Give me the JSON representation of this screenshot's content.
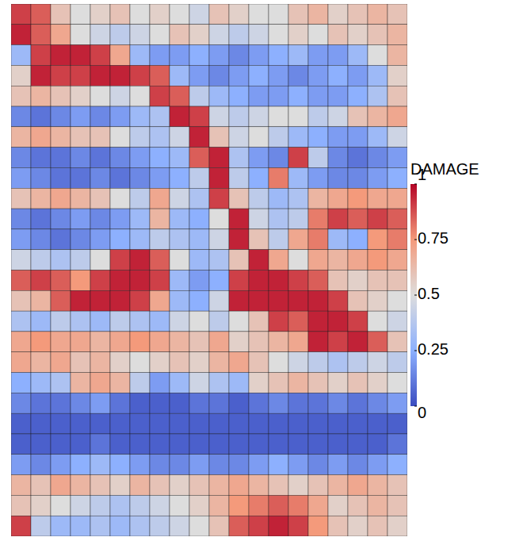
{
  "chart_data": {
    "type": "heatmap",
    "tick_labels": false,
    "colorbar_title": "DAMAGE",
    "colorbar_range": [
      0,
      1
    ],
    "colorbar_ticks": [
      0,
      0.25,
      0.5,
      0.75,
      1
    ],
    "cells": [
      [
        0.9,
        0.85,
        0.6,
        0.5,
        0.55,
        0.6,
        0.5,
        0.55,
        0.5,
        0.45,
        0.6,
        0.55,
        0.5,
        0.5,
        0.6,
        0.65,
        0.55,
        0.6,
        0.65,
        0.6
      ],
      [
        0.95,
        0.85,
        0.7,
        0.5,
        0.45,
        0.4,
        0.45,
        0.5,
        0.6,
        0.55,
        0.45,
        0.4,
        0.45,
        0.5,
        0.55,
        0.5,
        0.6,
        0.55,
        0.6,
        0.65
      ],
      [
        0.3,
        0.9,
        0.95,
        0.95,
        0.9,
        0.7,
        0.3,
        0.2,
        0.2,
        0.25,
        0.2,
        0.15,
        0.2,
        0.25,
        0.3,
        0.2,
        0.2,
        0.3,
        0.5,
        0.65
      ],
      [
        0.55,
        0.95,
        0.9,
        0.9,
        0.95,
        0.95,
        0.9,
        0.85,
        0.3,
        0.2,
        0.15,
        0.2,
        0.25,
        0.2,
        0.15,
        0.2,
        0.25,
        0.2,
        0.3,
        0.55
      ],
      [
        0.6,
        0.65,
        0.6,
        0.55,
        0.5,
        0.45,
        0.5,
        0.9,
        0.85,
        0.4,
        0.3,
        0.25,
        0.2,
        0.2,
        0.25,
        0.2,
        0.2,
        0.25,
        0.35,
        0.6
      ],
      [
        0.15,
        0.1,
        0.15,
        0.2,
        0.15,
        0.2,
        0.3,
        0.35,
        0.95,
        0.9,
        0.45,
        0.4,
        0.45,
        0.5,
        0.5,
        0.4,
        0.45,
        0.6,
        0.65,
        0.7
      ],
      [
        0.65,
        0.7,
        0.65,
        0.6,
        0.6,
        0.5,
        0.4,
        0.35,
        0.45,
        0.95,
        0.6,
        0.45,
        0.5,
        0.4,
        0.3,
        0.25,
        0.2,
        0.2,
        0.3,
        0.45
      ],
      [
        0.15,
        0.1,
        0.1,
        0.15,
        0.1,
        0.15,
        0.2,
        0.25,
        0.3,
        0.85,
        0.95,
        0.35,
        0.2,
        0.15,
        0.9,
        0.4,
        0.15,
        0.1,
        0.15,
        0.2
      ],
      [
        0.2,
        0.15,
        0.1,
        0.1,
        0.15,
        0.1,
        0.15,
        0.2,
        0.25,
        0.4,
        0.95,
        0.4,
        0.25,
        0.8,
        0.3,
        0.2,
        0.15,
        0.15,
        0.2,
        0.25
      ],
      [
        0.6,
        0.65,
        0.7,
        0.65,
        0.6,
        0.5,
        0.4,
        0.7,
        0.45,
        0.35,
        0.9,
        0.6,
        0.4,
        0.3,
        0.35,
        0.65,
        0.7,
        0.75,
        0.7,
        0.7
      ],
      [
        0.15,
        0.1,
        0.15,
        0.2,
        0.15,
        0.2,
        0.3,
        0.65,
        0.3,
        0.25,
        0.5,
        0.95,
        0.45,
        0.35,
        0.4,
        0.8,
        0.9,
        0.85,
        0.9,
        0.85
      ],
      [
        0.2,
        0.15,
        0.1,
        0.15,
        0.2,
        0.25,
        0.3,
        0.4,
        0.35,
        0.3,
        0.45,
        0.95,
        0.6,
        0.4,
        0.7,
        0.8,
        0.3,
        0.25,
        0.75,
        0.8
      ],
      [
        0.45,
        0.4,
        0.35,
        0.4,
        0.5,
        0.9,
        0.95,
        0.85,
        0.5,
        0.3,
        0.35,
        0.6,
        0.95,
        0.7,
        0.5,
        0.7,
        0.65,
        0.7,
        0.75,
        0.7
      ],
      [
        0.85,
        0.9,
        0.85,
        0.75,
        0.9,
        0.95,
        0.95,
        0.9,
        0.3,
        0.2,
        0.25,
        0.9,
        0.95,
        0.95,
        0.9,
        0.85,
        0.6,
        0.55,
        0.6,
        0.6
      ],
      [
        0.6,
        0.65,
        0.85,
        0.95,
        0.95,
        0.95,
        0.9,
        0.7,
        0.3,
        0.25,
        0.45,
        0.95,
        0.95,
        0.95,
        0.95,
        0.95,
        0.9,
        0.6,
        0.55,
        0.5
      ],
      [
        0.35,
        0.3,
        0.4,
        0.35,
        0.3,
        0.4,
        0.35,
        0.3,
        0.45,
        0.5,
        0.4,
        0.5,
        0.6,
        0.9,
        0.85,
        0.95,
        0.95,
        0.9,
        0.5,
        0.45
      ],
      [
        0.7,
        0.75,
        0.7,
        0.7,
        0.65,
        0.7,
        0.75,
        0.7,
        0.65,
        0.6,
        0.7,
        0.55,
        0.6,
        0.65,
        0.7,
        0.95,
        0.9,
        0.95,
        0.85,
        0.6
      ],
      [
        0.7,
        0.65,
        0.7,
        0.6,
        0.65,
        0.55,
        0.5,
        0.55,
        0.6,
        0.55,
        0.65,
        0.7,
        0.6,
        0.5,
        0.45,
        0.4,
        0.35,
        0.4,
        0.45,
        0.4
      ],
      [
        0.25,
        0.3,
        0.35,
        0.65,
        0.7,
        0.65,
        0.4,
        0.2,
        0.3,
        0.45,
        0.35,
        0.3,
        0.55,
        0.6,
        0.65,
        0.6,
        0.55,
        0.6,
        0.55,
        0.5
      ],
      [
        0.15,
        0.1,
        0.1,
        0.15,
        0.2,
        0.1,
        0.05,
        0.05,
        0.05,
        0.1,
        0.1,
        0.05,
        0.1,
        0.15,
        0.1,
        0.1,
        0.15,
        0.1,
        0.15,
        0.2
      ],
      [
        0.05,
        0.05,
        0.05,
        0.05,
        0.05,
        0.05,
        0.05,
        0.05,
        0.05,
        0.05,
        0.05,
        0.05,
        0.05,
        0.05,
        0.05,
        0.05,
        0.05,
        0.05,
        0.05,
        0.05
      ],
      [
        0.05,
        0.05,
        0.05,
        0.05,
        0.1,
        0.05,
        0.05,
        0.05,
        0.05,
        0.05,
        0.05,
        0.05,
        0.05,
        0.05,
        0.05,
        0.05,
        0.05,
        0.05,
        0.05,
        0.1
      ],
      [
        0.2,
        0.15,
        0.2,
        0.25,
        0.3,
        0.25,
        0.2,
        0.15,
        0.15,
        0.2,
        0.15,
        0.15,
        0.2,
        0.25,
        0.2,
        0.15,
        0.2,
        0.15,
        0.2,
        0.25
      ],
      [
        0.65,
        0.6,
        0.7,
        0.65,
        0.6,
        0.55,
        0.65,
        0.6,
        0.55,
        0.6,
        0.65,
        0.7,
        0.65,
        0.6,
        0.55,
        0.6,
        0.65,
        0.7,
        0.65,
        0.6
      ],
      [
        0.6,
        0.55,
        0.5,
        0.45,
        0.4,
        0.35,
        0.4,
        0.45,
        0.5,
        0.55,
        0.65,
        0.75,
        0.8,
        0.85,
        0.8,
        0.7,
        0.55,
        0.6,
        0.65,
        0.6
      ],
      [
        0.9,
        0.4,
        0.3,
        0.3,
        0.35,
        0.3,
        0.35,
        0.4,
        0.45,
        0.5,
        0.6,
        0.85,
        0.9,
        0.95,
        0.9,
        0.75,
        0.6,
        0.55,
        0.6,
        0.55
      ]
    ]
  }
}
